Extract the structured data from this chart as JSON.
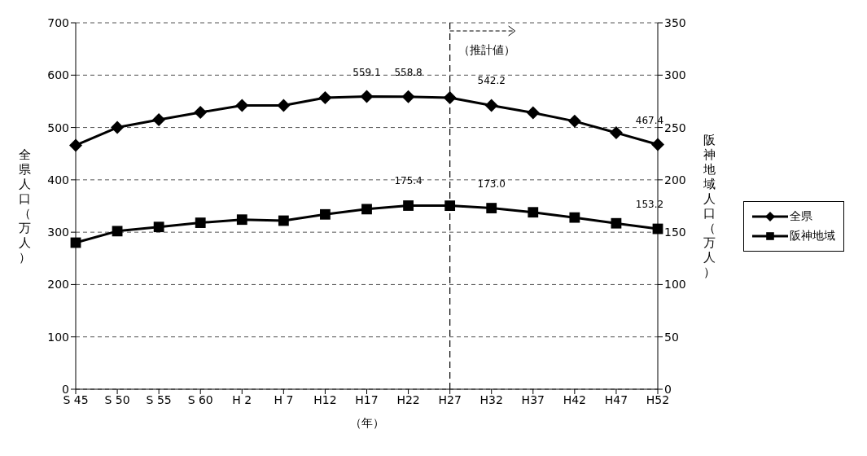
{
  "chart_data": {
    "type": "line",
    "xlabel": "（年）",
    "ylabel": "全県人口（万人）",
    "y2label": "阪神地域人口（万人）",
    "categories": [
      "S 45",
      "S 50",
      "S 55",
      "S 60",
      "H 2",
      "H 7",
      "H12",
      "H17",
      "H22",
      "H27",
      "H32",
      "H37",
      "H42",
      "H47",
      "H52"
    ],
    "series": [
      {
        "name": "全県",
        "color": "#000000",
        "marker": "diamond",
        "values": [
          466,
          500,
          515,
          529,
          542,
          542,
          557,
          559.1,
          558.8,
          557,
          542.2,
          528,
          512,
          490,
          467.4
        ],
        "value_labels": [
          null,
          null,
          null,
          null,
          null,
          null,
          null,
          "559.1",
          "558.8",
          null,
          "542.2",
          null,
          null,
          null,
          "467.4"
        ]
      },
      {
        "name": "阪神地域",
        "color": "#000000",
        "marker": "square",
        "axis": "y2",
        "values": [
          140,
          151,
          155,
          159,
          162,
          161,
          167,
          172,
          175.4,
          175.3,
          173.0,
          169,
          164,
          158.5,
          153.2
        ],
        "value_labels": [
          null,
          null,
          null,
          null,
          null,
          null,
          null,
          null,
          "175.4",
          null,
          "173.0",
          null,
          null,
          null,
          "153.2"
        ]
      }
    ],
    "ylim": [
      0,
      700
    ],
    "yticks": [
      0,
      100,
      200,
      300,
      400,
      500,
      600,
      700
    ],
    "y2lim": [
      0,
      350
    ],
    "y2ticks": [
      0,
      50,
      100,
      150,
      200,
      250,
      300,
      350
    ],
    "ref_lines": [
      {
        "axis": "x",
        "value": "H27",
        "label": "（推計値）",
        "line_style": "dashed"
      }
    ],
    "grid": "y",
    "legend": "right",
    "line_style": "solid"
  }
}
